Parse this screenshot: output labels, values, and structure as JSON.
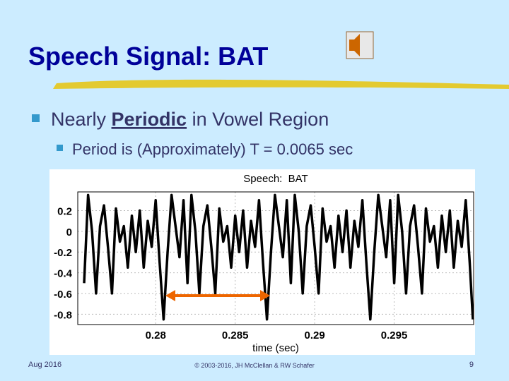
{
  "slide": {
    "title": "Speech Signal: BAT",
    "bullet": {
      "before": "Nearly ",
      "emph": "Periodic",
      "after": " in Vowel Region"
    },
    "sub_bullet": "Period is (Approximately) T = 0.0065 sec",
    "footer": {
      "date": "Aug 2016",
      "copyright": "© 2003-2016, JH McClellan & RW Schafer",
      "page": "9"
    }
  },
  "chart_data": {
    "type": "line",
    "title": "Speech:  BAT",
    "xlabel": "time (sec)",
    "color": "#000000",
    "grid": true,
    "xlim": [
      0.2751,
      0.3
    ],
    "ylim": [
      -0.9,
      0.38
    ],
    "xticks": [
      0.28,
      0.285,
      0.29,
      0.295
    ],
    "yticks": [
      0.2,
      0,
      -0.2,
      -0.4,
      -0.6,
      -0.8
    ],
    "x": [
      0.2755,
      0.27575,
      0.276,
      0.27625,
      0.2765,
      0.27675,
      0.277,
      0.27725,
      0.2775,
      0.27775,
      0.278,
      0.27825,
      0.2785,
      0.27875,
      0.279,
      0.27925,
      0.2795,
      0.27975,
      0.28,
      0.28025,
      0.2805,
      0.28075,
      0.281,
      0.28125,
      0.2815,
      0.28175,
      0.282,
      0.28225,
      0.2825,
      0.28275,
      0.283,
      0.28325,
      0.2835,
      0.28375,
      0.284,
      0.28425,
      0.2845,
      0.28475,
      0.285,
      0.28525,
      0.2855,
      0.28575,
      0.286,
      0.28625,
      0.2865,
      0.28675,
      0.287,
      0.28725,
      0.2875,
      0.28775,
      0.288,
      0.28825,
      0.2885,
      0.28875,
      0.289,
      0.28925,
      0.2895,
      0.28975,
      0.29,
      0.29025,
      0.2905,
      0.29075,
      0.291,
      0.29125,
      0.2915,
      0.29175,
      0.292,
      0.29225,
      0.2925,
      0.29275,
      0.293,
      0.29325,
      0.2935,
      0.29375,
      0.294,
      0.29425,
      0.2945,
      0.29475,
      0.295,
      0.29525,
      0.2955,
      0.29575,
      0.296,
      0.29625,
      0.2965,
      0.29675,
      0.297,
      0.29725,
      0.2975,
      0.29775,
      0.298,
      0.29825,
      0.2985,
      0.29875,
      0.299,
      0.29925,
      0.2995,
      0.29975,
      0.29995
    ],
    "values": [
      -0.5,
      0.35,
      0.0,
      -0.6,
      0.05,
      0.25,
      -0.15,
      -0.6,
      0.22,
      -0.1,
      0.05,
      -0.35,
      0.15,
      -0.2,
      0.2,
      -0.35,
      0.1,
      -0.15,
      0.3,
      -0.3,
      -0.85,
      -0.2,
      0.35,
      0.05,
      -0.25,
      0.3,
      -0.5,
      0.35,
      0.0,
      -0.6,
      0.05,
      0.25,
      -0.15,
      -0.6,
      0.22,
      -0.1,
      0.05,
      -0.35,
      0.15,
      -0.2,
      0.2,
      -0.35,
      0.1,
      -0.15,
      0.3,
      -0.3,
      -0.85,
      -0.2,
      0.35,
      0.05,
      -0.25,
      0.3,
      -0.5,
      0.35,
      0.0,
      -0.6,
      0.05,
      0.25,
      -0.15,
      -0.6,
      0.22,
      -0.1,
      0.05,
      -0.35,
      0.15,
      -0.2,
      0.2,
      -0.35,
      0.1,
      -0.15,
      0.3,
      -0.3,
      -0.85,
      -0.2,
      0.35,
      0.05,
      -0.25,
      0.3,
      -0.5,
      0.35,
      0.0,
      -0.6,
      0.05,
      0.25,
      -0.15,
      -0.6,
      0.22,
      -0.1,
      0.05,
      -0.35,
      0.15,
      -0.2,
      0.2,
      -0.35,
      0.1,
      -0.15,
      0.3,
      -0.3,
      -0.85
    ]
  }
}
